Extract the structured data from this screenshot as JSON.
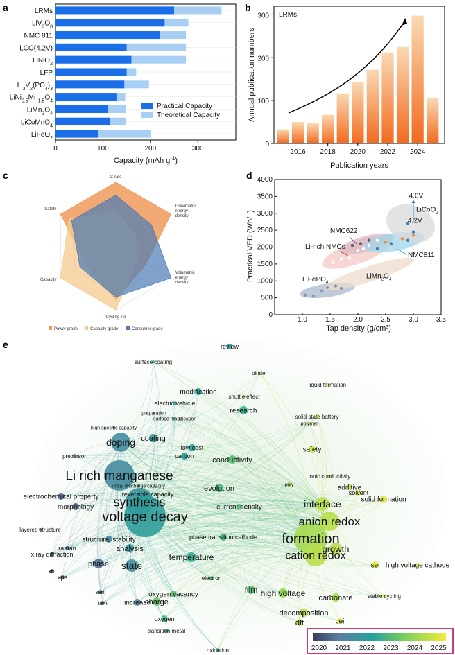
{
  "panels": {
    "a": "a",
    "b": "b",
    "c": "c",
    "d": "d",
    "e": "e"
  },
  "colors": {
    "practical": "#1a6fe8",
    "theoretical": "#a8cff3",
    "bar_top": "#f9d3a6",
    "bar_bottom": "#f26a1e",
    "power": "#f19a5b",
    "capacity": "#f5c98e",
    "consumer": "#4a7bb5",
    "highlight": "#d13a78"
  },
  "chart_data": [
    {
      "panel": "a",
      "type": "bar",
      "orientation": "horizontal",
      "categories": [
        "LRMs",
        "LiV3O8",
        "NMC 811",
        "LCO(4.2V)",
        "LiNiO2",
        "LFP",
        "Li3V2(PO4)3",
        "LiNi0.5Mn1.5O4",
        "LiMn2O4",
        "LiCoMnO4",
        "LiFeO2"
      ],
      "category_labels": [
        {
          "base": "LRMs"
        },
        {
          "base": "LiV",
          "s1": "3",
          "m1": "O",
          "s2": "8"
        },
        {
          "base": "NMC 811"
        },
        {
          "base": "LCO(4.2V)"
        },
        {
          "base": "LiNiO",
          "s1": "2"
        },
        {
          "base": "LFP"
        },
        {
          "base": "Li",
          "s1": "3",
          "m1": "V",
          "s2": "2",
          "m2": "(PO",
          "s3": "4",
          "m3": ")",
          "s4": "3"
        },
        {
          "base": "LiNi",
          "s1": "0.5",
          "m1": "Mn",
          "s2": "1.5",
          "m2": "O",
          "s3": "4"
        },
        {
          "base": "LiMn",
          "s1": "2",
          "m1": "O",
          "s2": "4"
        },
        {
          "base": "LiCoMnO",
          "s1": "4"
        },
        {
          "base": "LiFeO",
          "s1": "2"
        }
      ],
      "series": [
        {
          "name": "Practical Capacity",
          "values": [
            250,
            230,
            220,
            150,
            160,
            150,
            145,
            130,
            110,
            115,
            90
          ]
        },
        {
          "name": "Theoretical Capacity",
          "values": [
            350,
            280,
            275,
            275,
            275,
            170,
            197,
            147,
            148,
            148,
            200
          ]
        }
      ],
      "xlabel": "Capacity (mAh g",
      "xlabel_sup": "-1",
      "xlabel_end": ")",
      "xlim": [
        0,
        380
      ],
      "xticks": [
        0,
        100,
        200,
        300
      ],
      "legend": "bottom-right"
    },
    {
      "panel": "b",
      "type": "bar",
      "title": "LRMs",
      "categories": [
        2015,
        2016,
        2017,
        2018,
        2019,
        2020,
        2021,
        2022,
        2023,
        2024,
        2025
      ],
      "values": [
        33,
        50,
        47,
        67,
        117,
        143,
        172,
        212,
        225,
        298,
        106
      ],
      "xlabel": "Publication years",
      "ylabel": "Annual publication numbers",
      "ylim": [
        0,
        320
      ],
      "yticks": [
        0,
        100,
        200,
        300
      ],
      "xticks": [
        2016,
        2018,
        2020,
        2022,
        2024
      ]
    },
    {
      "panel": "c",
      "type": "radar",
      "axes": [
        "C-rate",
        "Gravimetric energy density",
        "Volumetric energy density",
        "Cycling life",
        "Capacity",
        "Safety"
      ],
      "axis_label_lines": [
        [
          "C-rate"
        ],
        [
          "Gravimetric",
          "energy",
          "density"
        ],
        [
          "Volumetric",
          "energy",
          "density"
        ],
        [
          "Cycling life"
        ],
        [
          "Capacity"
        ],
        [
          "Safety"
        ]
      ],
      "series": [
        {
          "name": "Power grade",
          "values": [
            1.0,
            1.0,
            0.55,
            0.85,
            0.55,
            1.0
          ]
        },
        {
          "name": "Capacity grade",
          "values": [
            0.55,
            0.35,
            0.4,
            1.0,
            1.0,
            0.85
          ]
        },
        {
          "name": "Consumer grade",
          "values": [
            0.8,
            0.65,
            1.0,
            0.8,
            0.65,
            0.8
          ]
        }
      ]
    },
    {
      "panel": "d",
      "type": "scatter",
      "xlabel": "Tap density (g/cm",
      "xlabel_sup": "3",
      "xlabel_end": ")",
      "ylabel": "Practical VED (Wh/L)",
      "xlim": [
        0.5,
        3.5
      ],
      "ylim": [
        0,
        4000
      ],
      "xticks": [
        1.0,
        1.5,
        2.0,
        2.5,
        3.0,
        3.5
      ],
      "xtick_labels": [
        "1.0",
        "1.5",
        "2.0",
        "2.5",
        "3.0",
        "3.5"
      ],
      "yticks": [
        0,
        500,
        1000,
        1500,
        2000,
        2500,
        3000,
        3500,
        4000
      ],
      "groups": [
        {
          "name": "LiFePO4",
          "label": "LiFePO",
          "sub": "4",
          "points": [
            [
              1.05,
              580
            ],
            [
              1.2,
              550
            ],
            [
              1.35,
              700
            ],
            [
              1.45,
              800
            ],
            [
              1.6,
              850
            ],
            [
              1.7,
              780
            ]
          ]
        },
        {
          "name": "LiMn2O4",
          "label": "LiMn",
          "sub": "2",
          "mid": "O",
          "sub2": "4",
          "points": [
            [
              2.2,
              1200
            ],
            [
              2.5,
              1150
            ]
          ]
        },
        {
          "name": "Li-rich NMCs",
          "label": "Li-rich NMCs",
          "points": [
            [
              1.55,
              1550
            ],
            [
              1.7,
              1650
            ],
            [
              1.85,
              1700
            ],
            [
              2.0,
              1900
            ],
            [
              2.1,
              1950
            ],
            [
              2.2,
              2050
            ],
            [
              2.35,
              2200
            ]
          ]
        },
        {
          "name": "NMC622",
          "label": "NMC622",
          "points": [
            [
              1.9,
              2050
            ],
            [
              2.05,
              2100
            ],
            [
              2.2,
              2200
            ]
          ]
        },
        {
          "name": "NMC811",
          "label": "NMC811",
          "points": [
            [
              2.35,
              1950
            ],
            [
              2.6,
              2100
            ],
            [
              2.9,
              2200
            ],
            [
              3.0,
              2450
            ],
            [
              2.9,
              2700
            ]
          ]
        },
        {
          "name": "LiCoO2",
          "label": "LiCoO",
          "sub": "2",
          "points": [
            [
              2.5,
              2150
            ],
            [
              2.8,
              2250
            ],
            [
              3.0,
              2350
            ]
          ]
        }
      ],
      "annotations": [
        "4.6V",
        "4.2V"
      ]
    },
    {
      "panel": "e",
      "type": "network",
      "nodes": [
        "review",
        "surface coating",
        "binder",
        "liquid formation",
        "modification",
        "electric vehicle",
        "shuttle effect",
        "preparation",
        "surface modification",
        "research",
        "solid state battery",
        "polymer",
        "high specific capacity",
        "coating",
        "precursor",
        "doping",
        "low cost",
        "carbon",
        "safety",
        "conductivity",
        "Li rich manganese",
        "ionic conductivity",
        "initial discharge capacity",
        "poly",
        "additive",
        "electrochemical property",
        "reversible capacity",
        "evolution",
        "solvent",
        "morphology",
        "synthesis",
        "interface",
        "solid formation",
        "voltage decay",
        "current density",
        "anion redox",
        "layered structure",
        "structural stability",
        "analysis",
        "phase transition cathode",
        "formation",
        "raman",
        "temperature",
        "growth",
        "x ray diffraction",
        "xrd",
        "phase",
        "state",
        "cation redox",
        "xps",
        "sei",
        "high voltage cathode",
        "electron",
        "sem",
        "film",
        "high voltage",
        "oxygen vacancy",
        "carbonate",
        "tem",
        "increase",
        "charge",
        "stable cycling",
        "oxygen",
        "decomposition",
        "dft",
        "cei",
        "transition metal",
        "oxidation"
      ],
      "colorbar": {
        "ticks": [
          "2020",
          "2021",
          "2022",
          "2023",
          "2024",
          "2025"
        ]
      }
    }
  ]
}
